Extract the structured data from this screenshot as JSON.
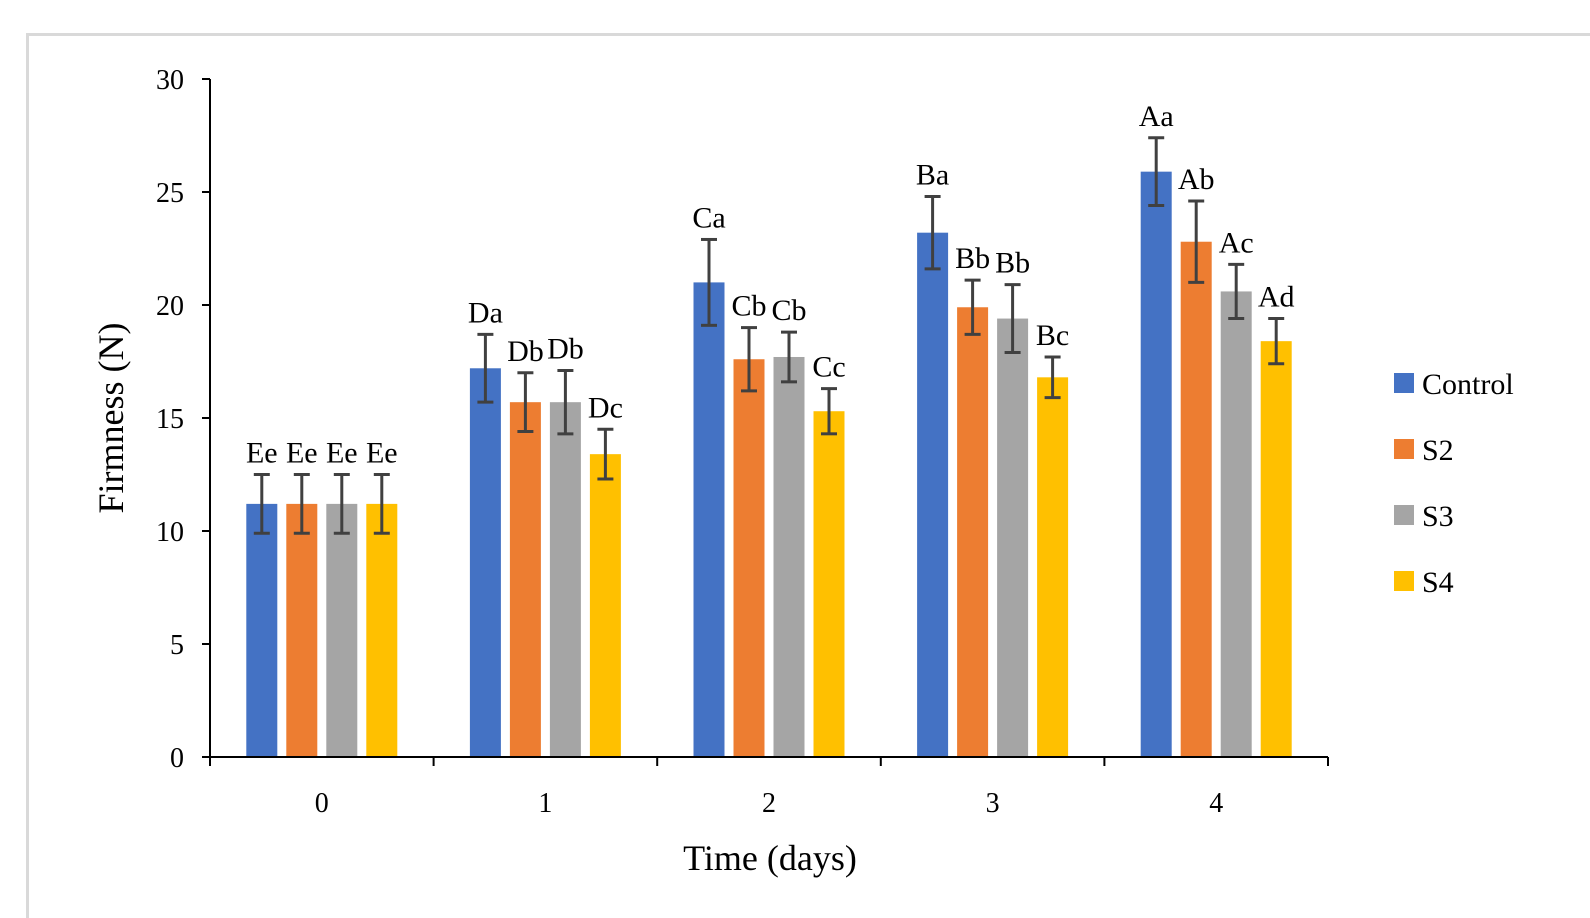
{
  "chart_data": {
    "type": "bar",
    "xlabel": "Time (days)",
    "ylabel": "Firmness (N)",
    "ylim": [
      0,
      30
    ],
    "yticks": [
      0,
      5,
      10,
      15,
      20,
      25,
      30
    ],
    "categories": [
      "0",
      "1",
      "2",
      "3",
      "4"
    ],
    "legend_position": "right",
    "series": [
      {
        "name": "Control",
        "color": "#4472c4",
        "values": [
          11.2,
          17.2,
          21.0,
          23.2,
          25.9
        ],
        "errors": [
          1.3,
          1.5,
          1.9,
          1.6,
          1.5
        ],
        "labels": [
          "Ee",
          "Da",
          "Ca",
          "Ba",
          "Aa"
        ]
      },
      {
        "name": "S2",
        "color": "#ed7d31",
        "values": [
          11.2,
          15.7,
          17.6,
          19.9,
          22.8
        ],
        "errors": [
          1.3,
          1.3,
          1.4,
          1.2,
          1.8
        ],
        "labels": [
          "Ee",
          "Db",
          "Cb",
          "Bb",
          "Ab"
        ]
      },
      {
        "name": "S3",
        "color": "#a5a5a5",
        "values": [
          11.2,
          15.7,
          17.7,
          19.4,
          20.6
        ],
        "errors": [
          1.3,
          1.4,
          1.1,
          1.5,
          1.2
        ],
        "labels": [
          "Ee",
          "Db",
          "Cb",
          "Bb",
          "Ac"
        ]
      },
      {
        "name": "S4",
        "color": "#ffc000",
        "values": [
          11.2,
          13.4,
          15.3,
          16.8,
          18.4
        ],
        "errors": [
          1.3,
          1.1,
          1.0,
          0.9,
          1.0
        ],
        "labels": [
          "Ee",
          "Dc",
          "Cc",
          "Bc",
          "Ad"
        ]
      }
    ]
  }
}
